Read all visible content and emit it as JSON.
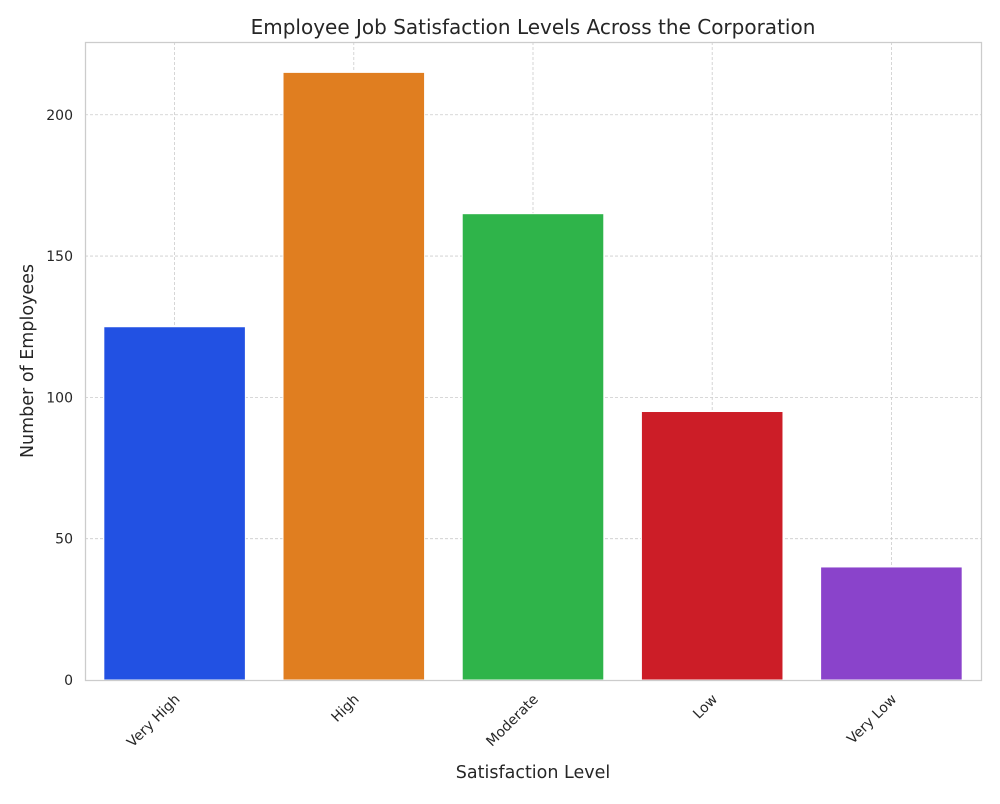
{
  "chart_data": {
    "type": "bar",
    "title": "Employee Job Satisfaction Levels Across the Corporation",
    "xlabel": "Satisfaction Level",
    "ylabel": "Number of Employees",
    "categories": [
      "Very High",
      "High",
      "Moderate",
      "Low",
      "Very Low"
    ],
    "values": [
      125,
      215,
      165,
      95,
      40
    ],
    "colors": [
      "#2251e3",
      "#e07e20",
      "#2fb44a",
      "#cc1d27",
      "#8a43cb"
    ],
    "ylim": [
      0,
      225.75
    ],
    "yticks": [
      0,
      50,
      100,
      150,
      200
    ],
    "ytick_labels": [
      "0",
      "50",
      "100",
      "150",
      "200"
    ],
    "xtick_rotation_deg": 45,
    "grid": true,
    "legend": "none"
  }
}
